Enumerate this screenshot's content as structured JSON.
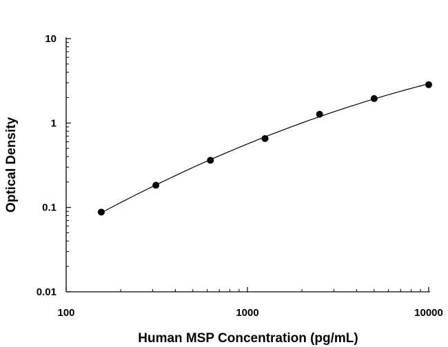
{
  "chart_data": {
    "type": "scatter",
    "title": "",
    "xlabel": "Human MSP Concentration (pg/mL)",
    "ylabel": "Optical Density",
    "x_scale": "log",
    "y_scale": "log",
    "xlim": [
      100,
      10000
    ],
    "ylim": [
      0.01,
      10
    ],
    "x_ticks": [
      "100",
      "1000",
      "10000"
    ],
    "y_ticks": [
      "0.01",
      "0.1",
      "1",
      "10"
    ],
    "grid": false,
    "legend": "none",
    "series": [
      {
        "x": [
          156.25,
          312.5,
          625,
          1250,
          2500,
          5000,
          10000
        ],
        "y": [
          0.088,
          0.183,
          0.362,
          0.655,
          1.27,
          1.95,
          2.85
        ]
      }
    ],
    "fit_curve": true,
    "colors": {
      "points": "#000000",
      "curve": "#000000",
      "axes": "#000000"
    }
  }
}
